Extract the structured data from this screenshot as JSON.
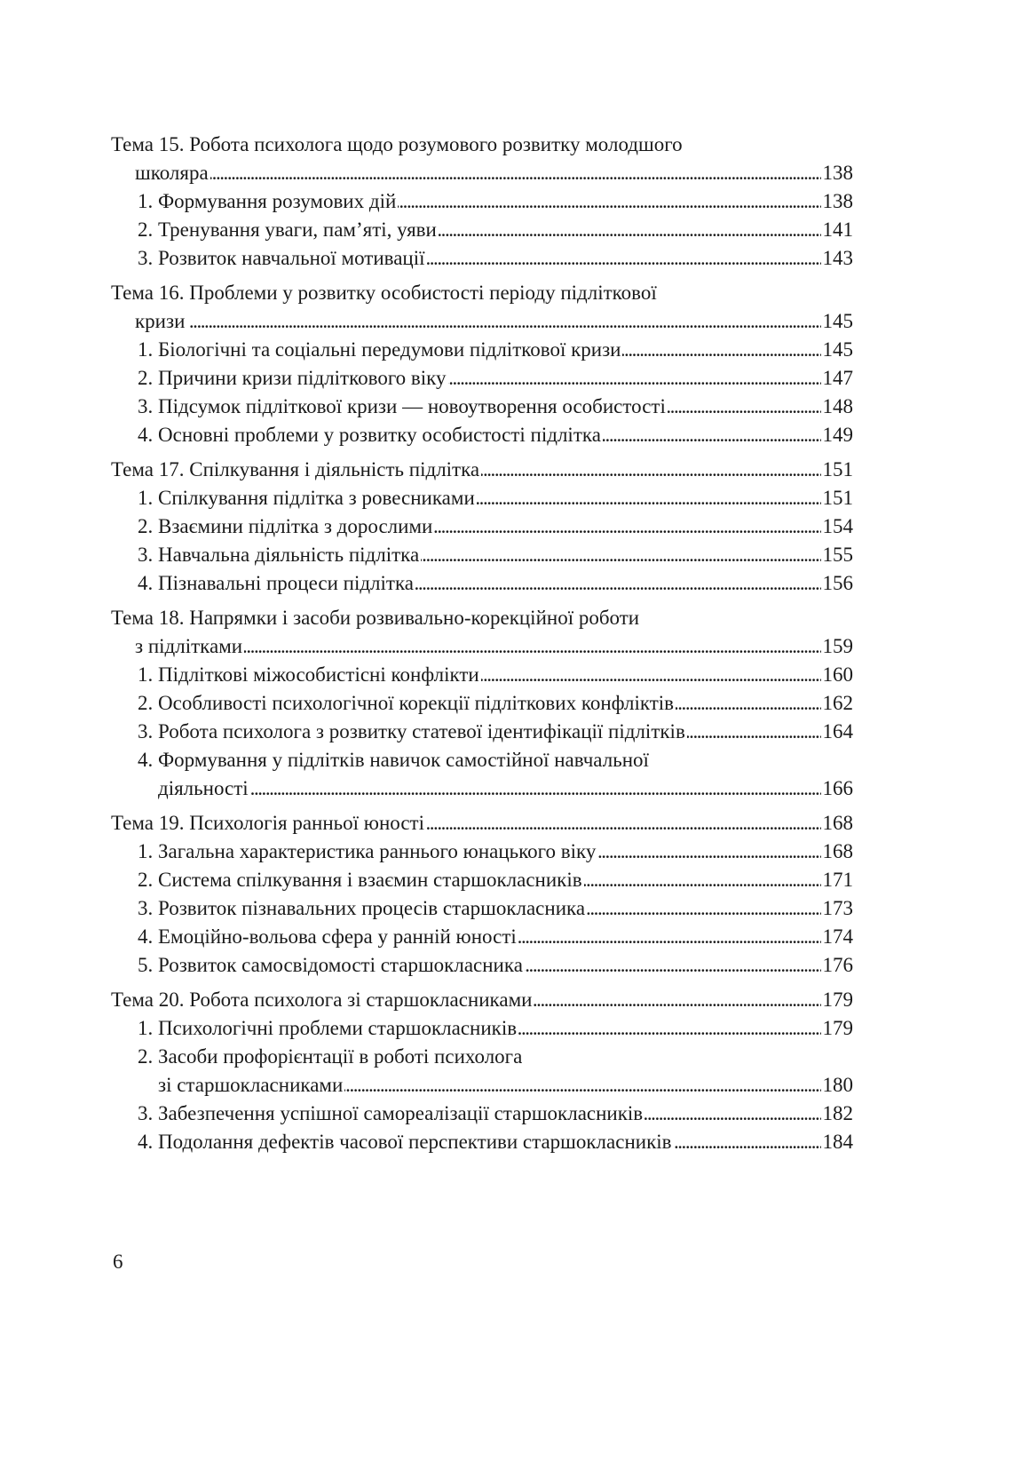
{
  "toc": [
    {
      "title": [
        "Тема 15. Робота психолога щодо розумового розвитку  молодшого",
        "школяра"
      ],
      "page": "138",
      "items": [
        {
          "text": [
            "1. Формування  розумових дій"
          ],
          "page": "138"
        },
        {
          "text": [
            "2. Тренування уваги, пам’яті, уяви"
          ],
          "page": "141"
        },
        {
          "text": [
            "3. Розвиток навчальної мотивації"
          ],
          "page": "143"
        }
      ]
    },
    {
      "title": [
        "Тема 16. Проблеми у розвитку особистості періоду підліткової",
        "кризи"
      ],
      "page": "145",
      "items": [
        {
          "text": [
            "1. Біологічні та соціальні передумови підліткової кризи"
          ],
          "page": "145"
        },
        {
          "text": [
            "2. Причини кризи підліткового віку"
          ],
          "page": "147"
        },
        {
          "text": [
            "3. Підсумок підліткової кризи —  новоутворення особистості"
          ],
          "page": "148"
        },
        {
          "text": [
            "4. Основні проблеми у  розвитку особистості підлітка"
          ],
          "page": "149"
        }
      ]
    },
    {
      "title": [
        "Тема 17. Спілкування і діяльність підлітка"
      ],
      "page": "151",
      "items": [
        {
          "text": [
            "1. Спілкування підлітка з ровесниками"
          ],
          "page": "151"
        },
        {
          "text": [
            "2. Взаємини підлітка з дорослими"
          ],
          "page": "154"
        },
        {
          "text": [
            "3. Навчальна діяльність підлітка"
          ],
          "page": "155"
        },
        {
          "text": [
            "4. Пізнавальні  процеси підлітка"
          ],
          "page": "156"
        }
      ]
    },
    {
      "title": [
        "Тема 18. Напрямки і засоби розвивально-корекційної  роботи",
        "з підлітками"
      ],
      "page": "159",
      "items": [
        {
          "text": [
            "1. Підліткові міжособистісні конфлікти"
          ],
          "page": "160"
        },
        {
          "text": [
            "2. Особливості психологічної корекції підліткових конфліктів"
          ],
          "page": "162"
        },
        {
          "text": [
            "3. Робота психолога з розвитку статевої ідентифікації підлітків"
          ],
          "page": "164"
        },
        {
          "text": [
            "4. Формування у підлітків навичок самостійної навчальної",
            "діяльності"
          ],
          "page": "166"
        }
      ]
    },
    {
      "title": [
        "Тема 19. Психологія ранньої юності"
      ],
      "page": "168",
      "items": [
        {
          "text": [
            "1. Загальна характеристика раннього юнацького віку"
          ],
          "page": "168"
        },
        {
          "text": [
            "2. Система спілкування і взаємин старшокласників"
          ],
          "page": "171"
        },
        {
          "text": [
            "3. Розвиток пізнавальних процесів старшокласника"
          ],
          "page": "173"
        },
        {
          "text": [
            "4. Емоційно-вольова сфера у ранній юності"
          ],
          "page": "174"
        },
        {
          "text": [
            "5. Розвиток самосвідомості  старшокласника"
          ],
          "page": "176"
        }
      ]
    },
    {
      "title": [
        "Тема 20. Робота психолога зі старшокласниками"
      ],
      "page": "179",
      "items": [
        {
          "text": [
            "1. Психологічні проблеми старшокласників"
          ],
          "page": "179"
        },
        {
          "text": [
            "2. Засоби профорієнтації в роботі психолога",
            "зі старшокласниками"
          ],
          "page": "180"
        },
        {
          "text": [
            "3. Забезпечення успішної самореалізації старшокласників"
          ],
          "page": "182"
        },
        {
          "text": [
            "4. Подолання дефектів часової перспективи старшокласників"
          ],
          "page": "184"
        }
      ]
    }
  ],
  "page_number": "6"
}
